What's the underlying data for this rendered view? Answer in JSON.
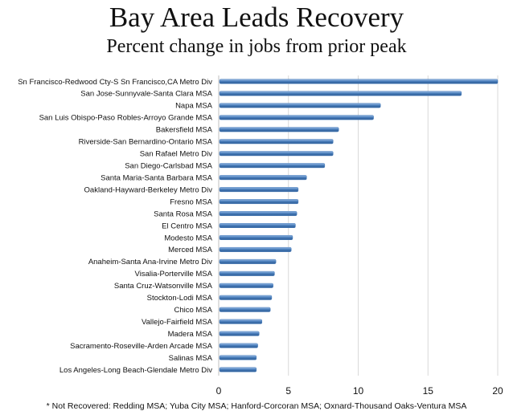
{
  "chart_data": {
    "type": "bar",
    "orientation": "horizontal",
    "title": "Bay Area Leads Recovery",
    "subtitle": "Percent change in jobs from prior peak",
    "categories": [
      "Sn Francisco-Redwood Cty-S Sn Francisco,CA Metro Div",
      "San Jose-Sunnyvale-Santa Clara MSA",
      "Napa MSA",
      "San Luis Obispo-Paso Robles-Arroyo Grande MSA",
      "Bakersfield MSA",
      "Riverside-San Bernardino-Ontario MSA",
      "San Rafael Metro Div",
      "San Diego-Carlsbad MSA",
      "Santa Maria-Santa Barbara MSA",
      "Oakland-Hayward-Berkeley Metro Div",
      "Fresno MSA",
      "Santa Rosa MSA",
      "El Centro MSA",
      "Modesto MSA",
      "Merced MSA",
      "Anaheim-Santa Ana-Irvine Metro Div",
      "Visalia-Porterville MSA",
      "Santa Cruz-Watsonville MSA",
      "Stockton-Lodi MSA",
      "Chico MSA",
      "Vallejo-Fairfield MSA",
      "Madera MSA",
      "Sacramento-Roseville-Arden Arcade MSA",
      "Salinas MSA",
      "Los Angeles-Long Beach-Glendale Metro Div"
    ],
    "values": [
      20.0,
      17.4,
      11.6,
      11.1,
      8.6,
      8.2,
      8.2,
      7.6,
      6.3,
      5.7,
      5.7,
      5.6,
      5.5,
      5.3,
      5.2,
      4.1,
      4.0,
      3.9,
      3.8,
      3.7,
      3.1,
      2.9,
      2.8,
      2.7,
      2.7
    ],
    "xlim": [
      0,
      20
    ],
    "xticks": [
      "0",
      "5",
      "10",
      "15",
      "20"
    ],
    "grid": true,
    "bar_color": "#4a7ebb",
    "footnote": "* Not Recovered: Redding MSA; Yuba City MSA; Hanford-Corcoran MSA; Oxnard-Thousand Oaks-Ventura MSA"
  }
}
